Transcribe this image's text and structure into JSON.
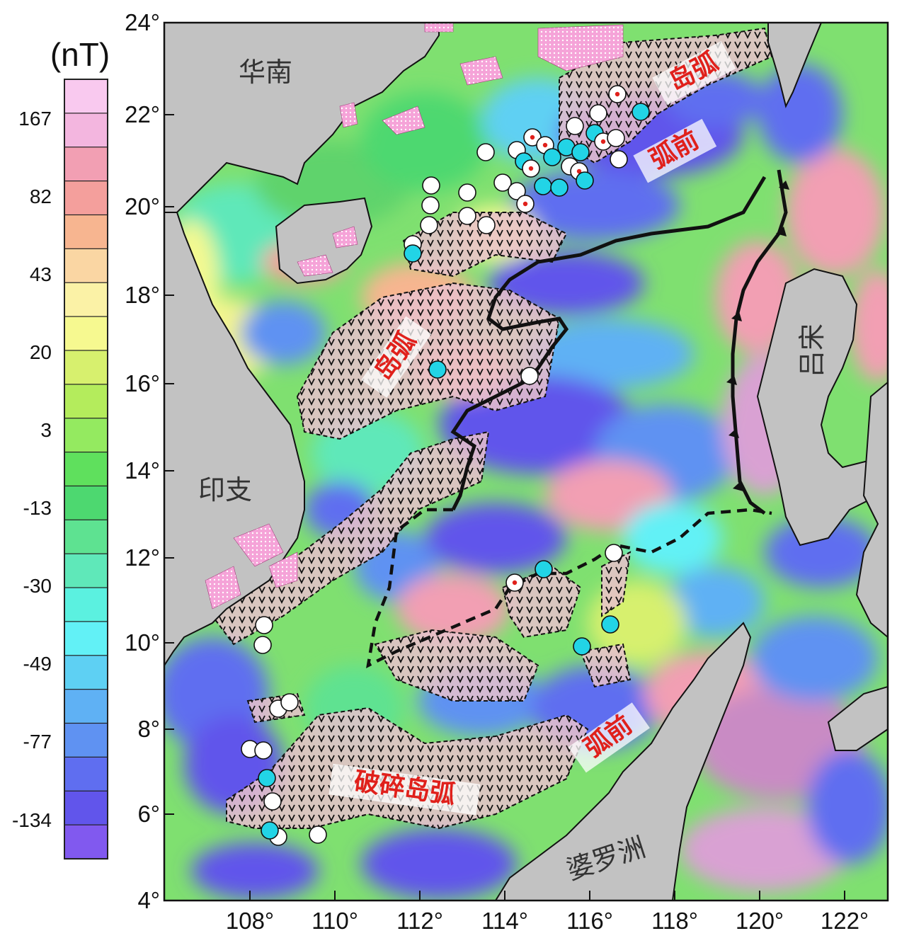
{
  "colorbar": {
    "unit": "(nT)",
    "tick_labels": [
      "167",
      "82",
      "43",
      "20",
      "3",
      "-13",
      "-30",
      "-49",
      "-77",
      "-134"
    ],
    "colors": [
      "#f9c9ef",
      "#f3b6df",
      "#f29fb3",
      "#f49f9c",
      "#f7b590",
      "#fad6a3",
      "#fbf2a6",
      "#f6f990",
      "#d7f06e",
      "#b4ec5c",
      "#94ea60",
      "#5fe05d",
      "#4dd870",
      "#5ee291",
      "#5fe8b9",
      "#5bf1e0",
      "#62f1f6",
      "#5ed0f3",
      "#5fb1f4",
      "#5f92f2",
      "#5f6ef0",
      "#6155eb",
      "#8159ef"
    ]
  },
  "map": {
    "lat_labels": [
      "24°",
      "22°",
      "20°",
      "18°",
      "16°",
      "14°",
      "12°",
      "10°",
      "8°",
      "6°",
      "4°"
    ],
    "lon_labels": [
      "108°",
      "110°",
      "112°",
      "114°",
      "116°",
      "118°",
      "120°",
      "122°"
    ],
    "lon_range": [
      106,
      123
    ],
    "lat_range": [
      4,
      24
    ],
    "place_labels": {
      "south_china": "华南",
      "indochina": "印支",
      "luzon": "吕宋",
      "borneo": "婆罗洲"
    },
    "region_labels": {
      "island_arc_north": "岛弧",
      "forearc_north": "弧前",
      "island_arc_west": "岛弧",
      "forearc_south": "弧前",
      "broken_island_arc": "破碎岛弧"
    }
  }
}
